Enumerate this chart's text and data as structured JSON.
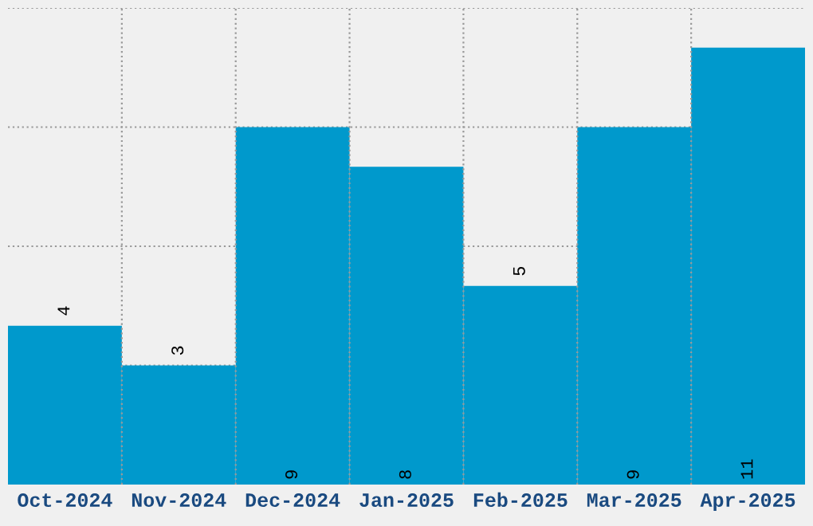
{
  "chart_data": {
    "type": "bar",
    "categories": [
      "Oct-2024",
      "Nov-2024",
      "Dec-2024",
      "Jan-2025",
      "Feb-2025",
      "Mar-2025",
      "Apr-2025"
    ],
    "values": [
      4,
      3,
      9,
      8,
      5,
      9,
      11
    ],
    "color": "#0099cc",
    "data_labels": true,
    "ylim": [
      0,
      12
    ],
    "tick_labels": "x",
    "grid": true
  }
}
